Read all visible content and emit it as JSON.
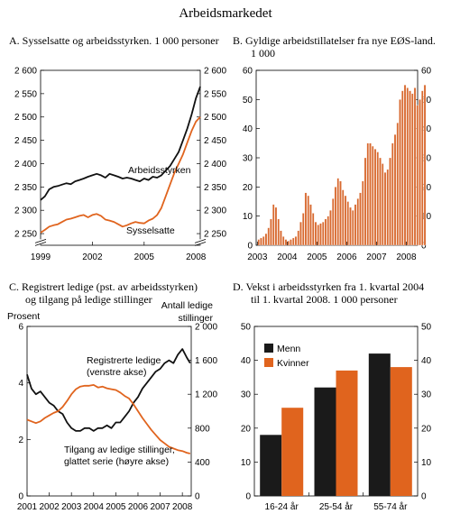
{
  "page_title": "Arbeidsmarkedet",
  "colors": {
    "black": "#111111",
    "orange": "#e0641e",
    "bar_fill": "#d8692f",
    "frame": "#000000"
  },
  "chart_data": [
    {
      "id": "A",
      "type": "line",
      "title_line1": "A.  Sysselsatte og arbeidsstyrken. 1 000 personer",
      "title_line2": "",
      "ylim": [
        2225,
        2600
      ],
      "yticks": [
        "2 600",
        "2 550",
        "2 500",
        "2 450",
        "2 400",
        "2 350",
        "2 300",
        "2 250"
      ],
      "ytick_values": [
        2600,
        2550,
        2500,
        2450,
        2400,
        2350,
        2300,
        2250
      ],
      "xticks": [
        "1999",
        "2002",
        "2005",
        "2008"
      ],
      "xtick_values": [
        1999,
        2002,
        2005,
        2008
      ],
      "xlim": [
        1999,
        2008.25
      ],
      "axis_break": true,
      "series": [
        {
          "name": "Arbeidsstyrken",
          "color": "#111111",
          "x": [
            1999.0,
            1999.25,
            1999.5,
            1999.75,
            2000.0,
            2000.25,
            2000.5,
            2000.75,
            2001.0,
            2001.25,
            2001.5,
            2001.75,
            2002.0,
            2002.25,
            2002.5,
            2002.75,
            2003.0,
            2003.25,
            2003.5,
            2003.75,
            2004.0,
            2004.25,
            2004.5,
            2004.75,
            2005.0,
            2005.25,
            2005.5,
            2005.75,
            2006.0,
            2006.25,
            2006.5,
            2006.75,
            2007.0,
            2007.25,
            2007.5,
            2007.75,
            2008.0,
            2008.25
          ],
          "y": [
            2322,
            2330,
            2345,
            2350,
            2352,
            2355,
            2358,
            2356,
            2362,
            2365,
            2368,
            2372,
            2375,
            2378,
            2375,
            2370,
            2378,
            2375,
            2372,
            2368,
            2370,
            2368,
            2365,
            2362,
            2368,
            2365,
            2372,
            2370,
            2375,
            2385,
            2395,
            2410,
            2425,
            2450,
            2475,
            2505,
            2540,
            2565
          ]
        },
        {
          "name": "Sysselsatte",
          "color": "#e0641e",
          "x": [
            1999.0,
            1999.25,
            1999.5,
            1999.75,
            2000.0,
            2000.25,
            2000.5,
            2000.75,
            2001.0,
            2001.25,
            2001.5,
            2001.75,
            2002.0,
            2002.25,
            2002.5,
            2002.75,
            2003.0,
            2003.25,
            2003.5,
            2003.75,
            2004.0,
            2004.25,
            2004.5,
            2004.75,
            2005.0,
            2005.25,
            2005.5,
            2005.75,
            2006.0,
            2006.25,
            2006.5,
            2006.75,
            2007.0,
            2007.25,
            2007.5,
            2007.75,
            2008.0,
            2008.25
          ],
          "y": [
            2252,
            2258,
            2265,
            2268,
            2270,
            2275,
            2280,
            2282,
            2285,
            2288,
            2290,
            2285,
            2290,
            2292,
            2288,
            2280,
            2278,
            2275,
            2270,
            2265,
            2268,
            2272,
            2275,
            2273,
            2272,
            2278,
            2282,
            2290,
            2305,
            2330,
            2355,
            2380,
            2400,
            2420,
            2445,
            2470,
            2490,
            2500
          ]
        }
      ],
      "labels": [
        {
          "text": "Arbeidsstyrken",
          "series": 0
        },
        {
          "text": "Sysselsatte",
          "series": 1
        }
      ]
    },
    {
      "id": "B",
      "type": "bar",
      "title_line1": "B.  Gyldige arbeidstillatelser fra nye EØS-land.",
      "title_line2": "1 000",
      "ylim": [
        0,
        60
      ],
      "yticks": [
        "60",
        "50",
        "40",
        "30",
        "20",
        "10",
        "0"
      ],
      "ytick_values": [
        60,
        50,
        40,
        30,
        20,
        10,
        0
      ],
      "xticks": [
        "2003",
        "2004",
        "2005",
        "2006",
        "2007",
        "2008"
      ],
      "xtick_values": [
        2003,
        2004,
        2005,
        2006,
        2007,
        2008
      ],
      "xlim": [
        2002.96,
        2008.38
      ],
      "bar_start": 2003.0,
      "bar_width": 0.0833,
      "values": [
        2,
        2.5,
        3,
        4,
        6,
        9,
        14,
        13,
        9,
        5,
        3,
        2,
        1.5,
        2,
        2.5,
        3,
        5,
        8,
        11,
        18,
        17,
        14,
        11,
        8,
        7,
        7.5,
        8,
        9,
        10,
        12,
        16,
        20,
        23,
        22,
        19,
        17,
        15,
        13,
        12,
        14,
        16,
        18,
        22,
        30,
        35,
        35,
        34,
        33,
        32,
        30,
        28,
        25,
        26,
        30,
        35,
        38,
        42,
        50,
        53,
        55,
        54,
        53,
        52,
        54,
        48,
        50,
        53,
        55
      ]
    },
    {
      "id": "C",
      "type": "line",
      "title_line1": "C.  Registrert ledige (pst. av arbeidsstyrken)",
      "title_line2": "og tilgang på ledige stillinger",
      "left_axis_label": "Prosent",
      "right_axis_label_line1": "Antall ledige",
      "right_axis_label_line2": "stillinger",
      "ylim_left": [
        0,
        6
      ],
      "ylim_right": [
        0,
        2000
      ],
      "yticks_left": [
        "6",
        "4",
        "2",
        "0"
      ],
      "ytick_values_left": [
        6,
        4,
        2,
        0
      ],
      "yticks_right": [
        "2 000",
        "1 600",
        "1 200",
        "800",
        "400",
        "0"
      ],
      "ytick_values_right": [
        2000,
        1600,
        1200,
        800,
        400,
        0
      ],
      "xticks": [
        "2001",
        "2002",
        "2003",
        "2004",
        "2005",
        "2006",
        "2007",
        "2008"
      ],
      "xtick_values": [
        2001,
        2002,
        2003,
        2004,
        2005,
        2006,
        2007,
        2008
      ],
      "xlim": [
        2001,
        2008.4
      ],
      "series": [
        {
          "name": "Registrerte ledige (venstre akse)",
          "color": "#111111",
          "axis": "left",
          "x": [
            2001.0,
            2001.2,
            2001.4,
            2001.6,
            2001.8,
            2002.0,
            2002.2,
            2002.4,
            2002.6,
            2002.8,
            2003.0,
            2003.2,
            2003.4,
            2003.6,
            2003.8,
            2004.0,
            2004.2,
            2004.4,
            2004.6,
            2004.8,
            2005.0,
            2005.2,
            2005.4,
            2005.6,
            2005.8,
            2006.0,
            2006.2,
            2006.4,
            2006.6,
            2006.8,
            2007.0,
            2007.2,
            2007.4,
            2007.6,
            2007.8,
            2008.0,
            2008.2,
            2008.35
          ],
          "y": [
            4.3,
            3.8,
            3.6,
            3.7,
            3.5,
            3.3,
            3.2,
            3.0,
            2.9,
            2.6,
            2.4,
            2.3,
            2.3,
            2.4,
            2.4,
            2.3,
            2.4,
            2.4,
            2.5,
            2.4,
            2.6,
            2.6,
            2.8,
            3.0,
            3.3,
            3.5,
            3.8,
            4.0,
            4.2,
            4.4,
            4.5,
            4.7,
            4.8,
            4.7,
            5.0,
            5.2,
            4.9,
            4.7
          ]
        },
        {
          "name": "Tilgang av ledige stillinger, glattet serie (høyre akse)",
          "color": "#e0641e",
          "axis": "right",
          "x": [
            2001.0,
            2001.2,
            2001.4,
            2001.6,
            2001.8,
            2002.0,
            2002.2,
            2002.4,
            2002.6,
            2002.8,
            2003.0,
            2003.2,
            2003.4,
            2003.6,
            2003.8,
            2004.0,
            2004.2,
            2004.4,
            2004.6,
            2004.8,
            2005.0,
            2005.2,
            2005.4,
            2005.6,
            2005.8,
            2006.0,
            2006.2,
            2006.4,
            2006.6,
            2006.8,
            2007.0,
            2007.2,
            2007.4,
            2007.6,
            2007.8,
            2008.0,
            2008.2,
            2008.35
          ],
          "y": [
            900,
            880,
            860,
            880,
            920,
            950,
            980,
            1000,
            1050,
            1120,
            1200,
            1260,
            1290,
            1300,
            1300,
            1310,
            1280,
            1290,
            1270,
            1260,
            1250,
            1220,
            1180,
            1150,
            1080,
            1000,
            920,
            850,
            780,
            720,
            660,
            620,
            580,
            560,
            540,
            530,
            510,
            500
          ]
        }
      ],
      "labels": [
        {
          "text_line1": "Registrerte ledige",
          "text_line2": "(venstre akse)"
        },
        {
          "text_line1": "Tilgang av ledige stillinger,",
          "text_line2": "glattet serie (høyre akse)"
        }
      ]
    },
    {
      "id": "D",
      "type": "bar",
      "title_line1": "D.  Vekst i arbeidsstyrken fra 1. kvartal 2004",
      "title_line2": "til 1. kvartal 2008. 1 000 personer",
      "ylim": [
        0,
        50
      ],
      "yticks": [
        "50",
        "40",
        "30",
        "20",
        "10",
        "0"
      ],
      "ytick_values": [
        50,
        40,
        30,
        20,
        10,
        0
      ],
      "categories": [
        "16-24 år",
        "25-54 år",
        "55-74 år"
      ],
      "series": [
        {
          "name": "Menn",
          "color": "#1a1a1a",
          "values": [
            18,
            32,
            42
          ]
        },
        {
          "name": "Kvinner",
          "color": "#e0641e",
          "values": [
            26,
            37,
            38
          ]
        }
      ],
      "legend": "top-left"
    }
  ]
}
